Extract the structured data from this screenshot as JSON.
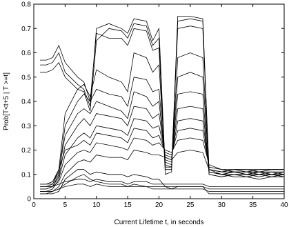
{
  "chart_data": {
    "type": "line",
    "title": "",
    "xlabel": "Current Lifetime t, in seconds",
    "ylabel": "Prob[T<t+5 | T >=t]",
    "xlim": [
      0,
      40
    ],
    "ylim": [
      0,
      0.8
    ],
    "xticks": [
      0,
      5,
      10,
      15,
      20,
      25,
      30,
      35,
      40
    ],
    "yticks": [
      0,
      0.1,
      0.2,
      0.3,
      0.4,
      0.5,
      0.6,
      0.7,
      0.8
    ],
    "xtick_labels": [
      "0",
      "5",
      "10",
      "15",
      "20",
      "25",
      "30",
      "35",
      "40"
    ],
    "ytick_labels": [
      "0",
      "0.1",
      "0.2",
      "0.3",
      "0.4",
      "0.5",
      "0.6",
      "0.7",
      "0.8"
    ],
    "grid": false,
    "legend": "none",
    "line_color": "#000000",
    "series": [
      {
        "x": [
          1,
          2,
          3,
          4,
          5,
          7,
          8,
          9,
          10,
          12,
          14,
          15,
          16,
          18,
          19,
          20,
          21,
          22,
          23,
          25,
          27,
          28,
          30,
          32,
          34,
          36,
          38,
          40
        ],
        "y": [
          0.52,
          0.52,
          0.53,
          0.56,
          0.5,
          0.45,
          0.44,
          0.36,
          0.65,
          0.7,
          0.69,
          0.66,
          0.72,
          0.71,
          0.63,
          0.66,
          0.1,
          0.11,
          0.73,
          0.74,
          0.73,
          0.1,
          0.09,
          0.1,
          0.1,
          0.11,
          0.1,
          0.1
        ]
      },
      {
        "x": [
          1,
          2,
          3,
          4,
          5,
          7,
          8,
          9,
          10,
          12,
          14,
          15,
          16,
          18,
          19,
          20,
          21,
          22,
          23,
          25,
          27,
          28,
          30,
          32,
          34,
          36,
          38,
          40
        ],
        "y": [
          0.55,
          0.55,
          0.56,
          0.6,
          0.52,
          0.47,
          0.45,
          0.38,
          0.7,
          0.72,
          0.7,
          0.68,
          0.74,
          0.73,
          0.65,
          0.7,
          0.12,
          0.12,
          0.75,
          0.75,
          0.74,
          0.11,
          0.1,
          0.11,
          0.11,
          0.1,
          0.11,
          0.1
        ]
      },
      {
        "x": [
          1,
          2,
          3,
          4,
          5,
          7,
          8,
          9,
          10,
          12,
          14,
          15,
          16,
          18,
          19,
          20,
          21,
          22,
          23,
          25,
          27,
          28,
          30,
          32,
          34,
          36,
          38,
          40
        ],
        "y": [
          0.57,
          0.57,
          0.58,
          0.63,
          0.56,
          0.5,
          0.48,
          0.4,
          0.68,
          0.66,
          0.66,
          0.63,
          0.7,
          0.69,
          0.61,
          0.62,
          0.13,
          0.13,
          0.7,
          0.71,
          0.7,
          0.12,
          0.11,
          0.12,
          0.12,
          0.12,
          0.12,
          0.12
        ]
      },
      {
        "x": [
          1,
          2,
          3,
          4,
          5,
          7,
          8,
          9,
          10,
          12,
          14,
          15,
          16,
          18,
          19,
          20,
          21,
          22,
          23,
          25,
          27,
          28,
          30,
          32,
          34,
          36,
          38,
          40
        ],
        "y": [
          0.05,
          0.05,
          0.06,
          0.12,
          0.35,
          0.45,
          0.47,
          0.42,
          0.53,
          0.5,
          0.48,
          0.44,
          0.6,
          0.58,
          0.52,
          0.55,
          0.14,
          0.13,
          0.58,
          0.6,
          0.58,
          0.11,
          0.1,
          0.11,
          0.1,
          0.11,
          0.1,
          0.11
        ]
      },
      {
        "x": [
          1,
          2,
          3,
          4,
          5,
          7,
          8,
          9,
          10,
          12,
          14,
          15,
          16,
          18,
          19,
          20,
          21,
          22,
          23,
          25,
          27,
          28,
          30,
          32,
          34,
          36,
          38,
          40
        ],
        "y": [
          0.04,
          0.04,
          0.05,
          0.1,
          0.3,
          0.4,
          0.43,
          0.4,
          0.45,
          0.43,
          0.42,
          0.38,
          0.5,
          0.49,
          0.44,
          0.45,
          0.15,
          0.14,
          0.5,
          0.52,
          0.5,
          0.12,
          0.11,
          0.12,
          0.11,
          0.12,
          0.12,
          0.12
        ]
      },
      {
        "x": [
          1,
          2,
          3,
          4,
          5,
          7,
          8,
          9,
          10,
          12,
          14,
          15,
          16,
          18,
          19,
          20,
          21,
          22,
          23,
          25,
          27,
          28,
          30,
          32,
          34,
          36,
          38,
          40
        ],
        "y": [
          0.06,
          0.06,
          0.06,
          0.11,
          0.26,
          0.35,
          0.37,
          0.35,
          0.4,
          0.38,
          0.36,
          0.33,
          0.44,
          0.42,
          0.38,
          0.4,
          0.16,
          0.15,
          0.43,
          0.44,
          0.43,
          0.1,
          0.09,
          0.1,
          0.1,
          0.09,
          0.1,
          0.1
        ]
      },
      {
        "x": [
          1,
          2,
          3,
          4,
          5,
          7,
          8,
          9,
          10,
          12,
          14,
          15,
          16,
          18,
          19,
          20,
          21,
          22,
          23,
          25,
          27,
          28,
          30,
          32,
          34,
          36,
          38,
          40
        ],
        "y": [
          0.05,
          0.05,
          0.05,
          0.09,
          0.22,
          0.3,
          0.33,
          0.3,
          0.35,
          0.34,
          0.33,
          0.3,
          0.38,
          0.37,
          0.33,
          0.35,
          0.17,
          0.16,
          0.37,
          0.38,
          0.37,
          0.11,
          0.1,
          0.1,
          0.09,
          0.1,
          0.09,
          0.1
        ]
      },
      {
        "x": [
          1,
          2,
          3,
          4,
          5,
          7,
          8,
          9,
          10,
          12,
          14,
          15,
          16,
          18,
          19,
          20,
          21,
          22,
          23,
          25,
          27,
          28,
          30,
          32,
          34,
          36,
          38,
          40
        ],
        "y": [
          0.03,
          0.03,
          0.04,
          0.08,
          0.18,
          0.25,
          0.27,
          0.25,
          0.3,
          0.29,
          0.28,
          0.26,
          0.33,
          0.32,
          0.29,
          0.3,
          0.18,
          0.17,
          0.32,
          0.33,
          0.32,
          0.12,
          0.11,
          0.11,
          0.1,
          0.1,
          0.1,
          0.09
        ]
      },
      {
        "x": [
          1,
          2,
          3,
          4,
          5,
          7,
          8,
          9,
          10,
          12,
          14,
          15,
          16,
          18,
          19,
          20,
          21,
          22,
          23,
          25,
          27,
          28,
          30,
          32,
          34,
          36,
          38,
          40
        ],
        "y": [
          0.06,
          0.06,
          0.07,
          0.12,
          0.2,
          0.22,
          0.24,
          0.22,
          0.27,
          0.26,
          0.25,
          0.23,
          0.29,
          0.28,
          0.25,
          0.26,
          0.19,
          0.18,
          0.28,
          0.29,
          0.28,
          0.13,
          0.12,
          0.12,
          0.12,
          0.11,
          0.11,
          0.11
        ]
      },
      {
        "x": [
          1,
          2,
          3,
          4,
          5,
          7,
          8,
          9,
          10,
          12,
          14,
          15,
          16,
          18,
          19,
          20,
          21,
          22,
          23,
          25,
          27,
          28,
          30,
          32,
          34,
          36,
          38,
          40
        ],
        "y": [
          0.04,
          0.04,
          0.05,
          0.07,
          0.14,
          0.19,
          0.2,
          0.19,
          0.23,
          0.22,
          0.21,
          0.2,
          0.25,
          0.24,
          0.22,
          0.23,
          0.2,
          0.19,
          0.24,
          0.25,
          0.24,
          0.14,
          0.12,
          0.11,
          0.11,
          0.11,
          0.12,
          0.12
        ]
      },
      {
        "x": [
          1,
          2,
          3,
          4,
          5,
          7,
          8,
          9,
          10,
          12,
          14,
          15,
          16,
          18,
          19,
          20,
          21,
          22,
          23,
          25,
          27,
          28,
          30,
          32,
          34,
          36,
          38,
          40
        ],
        "y": [
          0.03,
          0.03,
          0.03,
          0.05,
          0.1,
          0.15,
          0.16,
          0.15,
          0.18,
          0.17,
          0.17,
          0.16,
          0.2,
          0.19,
          0.18,
          0.18,
          0.17,
          0.16,
          0.19,
          0.2,
          0.19,
          0.12,
          0.1,
          0.09,
          0.09,
          0.08,
          0.09,
          0.09
        ]
      },
      {
        "x": [
          1,
          2,
          3,
          4,
          5,
          7,
          8,
          9,
          10,
          12,
          14,
          15,
          16,
          18,
          19,
          20,
          21,
          22,
          23,
          25,
          27,
          28,
          30,
          32,
          34,
          36,
          38,
          40
        ],
        "y": [
          0.02,
          0.02,
          0.03,
          0.04,
          0.06,
          0.09,
          0.1,
          0.08,
          0.07,
          0.06,
          0.06,
          0.05,
          0.06,
          0.05,
          0.05,
          0.05,
          0.05,
          0.05,
          0.05,
          0.05,
          0.05,
          0.04,
          0.04,
          0.04,
          0.04,
          0.04,
          0.04,
          0.04
        ]
      },
      {
        "x": [
          1,
          2,
          3,
          4,
          5,
          7,
          8,
          9,
          10,
          12,
          14,
          15,
          16,
          18,
          19,
          20,
          21,
          22,
          23,
          25,
          27,
          28,
          30,
          32,
          34,
          36,
          38,
          40
        ],
        "y": [
          0.05,
          0.05,
          0.05,
          0.06,
          0.07,
          0.08,
          0.08,
          0.07,
          0.08,
          0.07,
          0.07,
          0.06,
          0.07,
          0.07,
          0.06,
          0.06,
          0.06,
          0.06,
          0.06,
          0.06,
          0.06,
          0.05,
          0.05,
          0.05,
          0.05,
          0.05,
          0.05,
          0.05
        ]
      },
      {
        "x": [
          1,
          2,
          3,
          4,
          5,
          7,
          8,
          9,
          10,
          12,
          14,
          15,
          16,
          18,
          19,
          20,
          21,
          22,
          23,
          25,
          27,
          28,
          30,
          32,
          34,
          36,
          38,
          40
        ],
        "y": [
          0.03,
          0.03,
          0.03,
          0.04,
          0.05,
          0.06,
          0.06,
          0.05,
          0.06,
          0.05,
          0.05,
          0.05,
          0.05,
          0.05,
          0.04,
          0.04,
          0.04,
          0.04,
          0.04,
          0.04,
          0.04,
          0.03,
          0.03,
          0.03,
          0.03,
          0.03,
          0.03,
          0.03
        ]
      },
      {
        "x": [
          1,
          2,
          3,
          4,
          5,
          7,
          8,
          9,
          10,
          12,
          14,
          15,
          16,
          18,
          19,
          20,
          21,
          22,
          23,
          25,
          27,
          28,
          30,
          32,
          34,
          36,
          38,
          40
        ],
        "y": [
          0.02,
          0.02,
          0.02,
          0.03,
          0.08,
          0.12,
          0.12,
          0.1,
          0.11,
          0.1,
          0.1,
          0.09,
          0.1,
          0.09,
          0.08,
          0.08,
          0.05,
          0.04,
          0.05,
          0.05,
          0.05,
          0.02,
          0.02,
          0.02,
          0.02,
          0.02,
          0.02,
          0.02
        ]
      }
    ]
  }
}
